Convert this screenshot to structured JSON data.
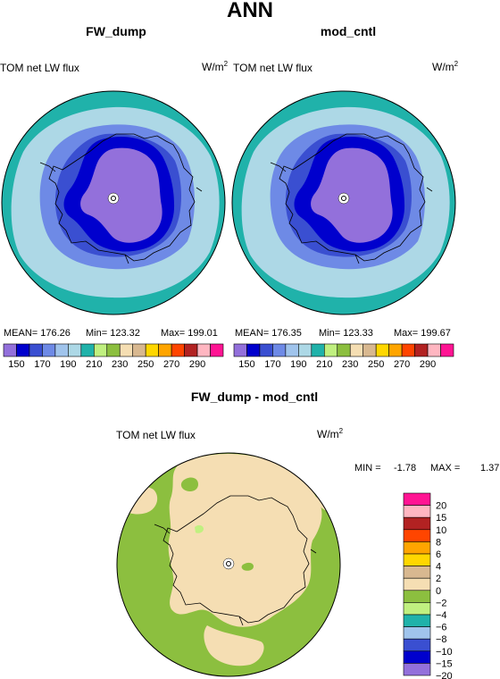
{
  "main_title": "ANN",
  "panels": [
    {
      "case_name": "FW_dump",
      "variable": "TOM net LW flux",
      "units_base": "W/m",
      "units_exp": "2",
      "mean_text": "MEAN= 176.26",
      "min_text": "Min= 123.32",
      "max_text": "Max= 199.01"
    },
    {
      "case_name": "mod_cntl",
      "variable": "TOM net LW flux",
      "units_base": "W/m",
      "units_exp": "2",
      "mean_text": "MEAN= 176.35",
      "min_text": "Min= 123.33",
      "max_text": "Max= 199.67"
    }
  ],
  "diff_panel": {
    "title": "FW_dump - mod_cntl",
    "variable": "TOM net LW flux",
    "units_base": "W/m",
    "units_exp": "2",
    "min_label": "MIN =",
    "min_value": "-1.78",
    "max_label": "MAX =",
    "max_value": "1.37"
  },
  "chart_data": [
    {
      "type": "heatmap",
      "title": "FW_dump",
      "variable": "TOM net LW flux",
      "units": "W/m2",
      "projection": "polar stereographic (south pole)",
      "levels": [
        150,
        160,
        170,
        180,
        190,
        200,
        210,
        220,
        230,
        240,
        250,
        260,
        270,
        280,
        290
      ],
      "level_tick_labels": [
        "150",
        "170",
        "190",
        "210",
        "230",
        "250",
        "270",
        "290"
      ],
      "colors": [
        "#9370db",
        "#0000cd",
        "#3a4fd1",
        "#6e8ae6",
        "#a0c4ec",
        "#add8e6",
        "#20b2aa",
        "#c0f080",
        "#8cbf3f",
        "#f5deb3",
        "#d8b890",
        "#ffd700",
        "#ffa500",
        "#ff4500",
        "#b22222",
        "#ffb6c1",
        "#ff1493"
      ],
      "mean": 176.26,
      "min": 123.32,
      "max": 199.01
    },
    {
      "type": "heatmap",
      "title": "mod_cntl",
      "variable": "TOM net LW flux",
      "units": "W/m2",
      "projection": "polar stereographic (south pole)",
      "levels": [
        150,
        160,
        170,
        180,
        190,
        200,
        210,
        220,
        230,
        240,
        250,
        260,
        270,
        280,
        290
      ],
      "level_tick_labels": [
        "150",
        "170",
        "190",
        "210",
        "230",
        "250",
        "270",
        "290"
      ],
      "colors": [
        "#9370db",
        "#0000cd",
        "#3a4fd1",
        "#6e8ae6",
        "#a0c4ec",
        "#add8e6",
        "#20b2aa",
        "#c0f080",
        "#8cbf3f",
        "#f5deb3",
        "#d8b890",
        "#ffd700",
        "#ffa500",
        "#ff4500",
        "#b22222",
        "#ffb6c1",
        "#ff1493"
      ],
      "mean": 176.35,
      "min": 123.33,
      "max": 199.67
    },
    {
      "type": "heatmap",
      "title": "FW_dump - mod_cntl",
      "variable": "TOM net LW flux",
      "units": "W/m2",
      "projection": "polar stereographic (south pole)",
      "levels": [
        -20,
        -15,
        -10,
        -8,
        -6,
        -4,
        -2,
        0,
        2,
        4,
        6,
        8,
        10,
        15,
        20
      ],
      "level_tick_labels": [
        "20",
        "15",
        "10",
        "8",
        "6",
        "4",
        "2",
        "0",
        "−2",
        "−4",
        "−6",
        "−8",
        "−10",
        "−15",
        "−20"
      ],
      "colors": [
        "#ff1493",
        "#ffb6c1",
        "#b22222",
        "#ff4500",
        "#ffa500",
        "#ffd700",
        "#d8b890",
        "#f5deb3",
        "#8cbf3f",
        "#c0f080",
        "#20b2aa",
        "#a0c4ec",
        "#3a4fd1",
        "#0000cd",
        "#9370db"
      ],
      "min": -1.78,
      "max": 1.37
    }
  ]
}
